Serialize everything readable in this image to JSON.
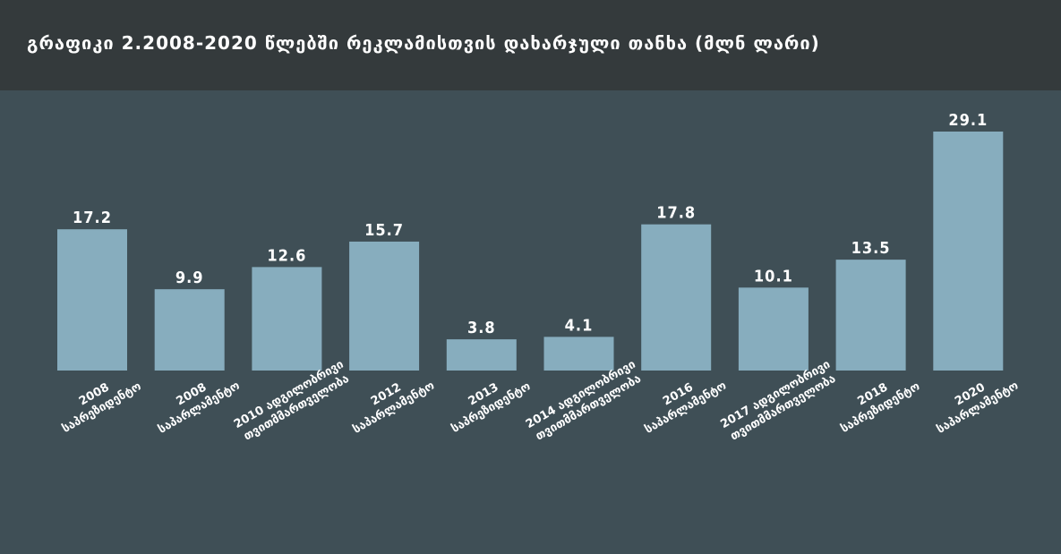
{
  "page": {
    "title": "გრაფიკი 2.2008-2020 წლებში  რეკლამისთვის დახარჯული თანხა (მლნ ლარი)"
  },
  "chart_data": {
    "type": "bar",
    "title": "გრაფიკი 2.2008-2020 წლებში  რეკლამისთვის დახარჯული თანხა (მლნ ლარი)",
    "categories": [
      [
        "2008",
        "საპრეზიდენტო"
      ],
      [
        "2008",
        "საპარლამენტო"
      ],
      [
        "2010 ადგილობრივი",
        "თვითმმართველობა"
      ],
      [
        "2012",
        "საპარლამენტო"
      ],
      [
        "2013",
        "საპრეზიდენტო"
      ],
      [
        "2014 ადგილობრივი",
        "თვითმმართველობა"
      ],
      [
        "2016",
        "საპარლამენტო"
      ],
      [
        "2017 ადგილობრივი",
        "თვითმმართველობა"
      ],
      [
        "2018",
        "საპრეზიდენტო"
      ],
      [
        "2020",
        "საპარლამენტო"
      ]
    ],
    "values": [
      17.2,
      9.9,
      12.6,
      15.7,
      3.8,
      4.1,
      17.8,
      10.1,
      13.5,
      29.1
    ],
    "value_labels": [
      "17.2",
      "9.9",
      "12.6",
      "15.7",
      "3.8",
      "4.1",
      "17.8",
      "10.1",
      "13.5",
      "29.1"
    ],
    "ylim": [
      0,
      29.1
    ],
    "grid": false,
    "bar_color": "#87adbe",
    "background": "#3f4f56",
    "header_color": "#343a3c"
  }
}
